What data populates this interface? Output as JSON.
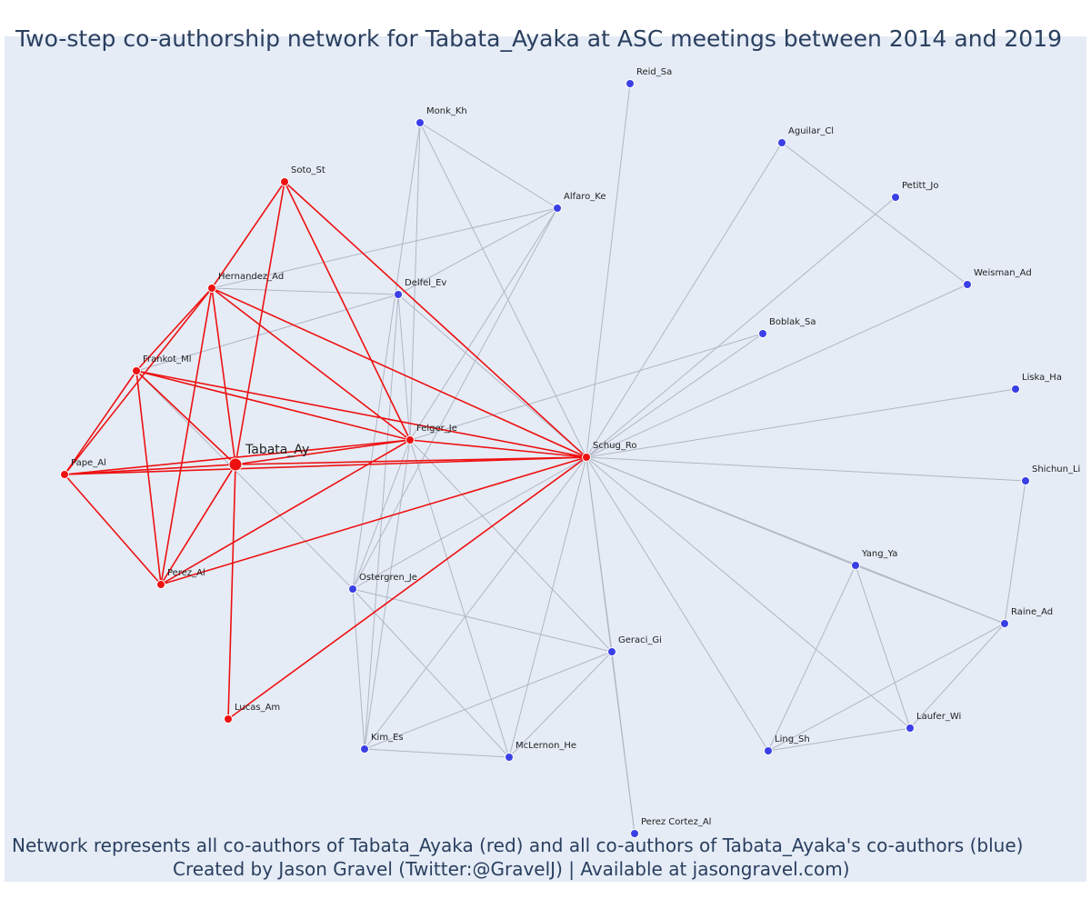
{
  "title": "Two-step co-authorship network for Tabata_Ayaka at ASC meetings between 2014 and 2019",
  "footer": {
    "line1": "Network represents all co-authors of Tabata_Ayaka (red) and all co-authors of Tabata_Ayaka's co-authors (blue)",
    "line2": "Created by Jason Gravel (Twitter:@GravelJ) | Available at jasongravel.com)"
  },
  "colors": {
    "background": "#e5ecf6",
    "red": "#ee1111",
    "blue": "#3a3fe6",
    "gray_edge": "#b2b6c4",
    "text": "#2a3f5f"
  },
  "nodes": [
    {
      "id": "tabata",
      "label": "Tabata_Ay",
      "group": "focal"
    },
    {
      "id": "soto",
      "label": "Soto_St",
      "group": "red"
    },
    {
      "id": "hernandez",
      "label": "Hernandez_Ad",
      "group": "red"
    },
    {
      "id": "frankot",
      "label": "Frankot_Ml",
      "group": "red"
    },
    {
      "id": "pape",
      "label": "Pape_Al",
      "group": "red"
    },
    {
      "id": "perez_al",
      "label": "Perez_Al",
      "group": "red"
    },
    {
      "id": "lucas",
      "label": "Lucas_Am",
      "group": "red"
    },
    {
      "id": "felger",
      "label": "Felger_Je",
      "group": "red"
    },
    {
      "id": "schug",
      "label": "Schug_Ro",
      "group": "red"
    },
    {
      "id": "reid",
      "label": "Reid_Sa",
      "group": "blue"
    },
    {
      "id": "monk",
      "label": "Monk_Kh",
      "group": "blue"
    },
    {
      "id": "aguilar",
      "label": "Aguilar_Cl",
      "group": "blue"
    },
    {
      "id": "alfaro",
      "label": "Alfaro_Ke",
      "group": "blue"
    },
    {
      "id": "petitt",
      "label": "Petitt_Jo",
      "group": "blue"
    },
    {
      "id": "delfel",
      "label": "Delfel_Ev",
      "group": "blue"
    },
    {
      "id": "weisman",
      "label": "Weisman_Ad",
      "group": "blue"
    },
    {
      "id": "boblak",
      "label": "Boblak_Sa",
      "group": "blue"
    },
    {
      "id": "liska",
      "label": "Liska_Ha",
      "group": "blue"
    },
    {
      "id": "shichun",
      "label": "Shichun_Li",
      "group": "blue"
    },
    {
      "id": "yang",
      "label": "Yang_Ya",
      "group": "blue"
    },
    {
      "id": "ostergren",
      "label": "Ostergren_Je",
      "group": "blue"
    },
    {
      "id": "raine",
      "label": "Raine_Ad",
      "group": "blue"
    },
    {
      "id": "geraci",
      "label": "Geraci_Gi",
      "group": "blue"
    },
    {
      "id": "laufer",
      "label": "Laufer_Wi",
      "group": "blue"
    },
    {
      "id": "ling",
      "label": "Ling_Sh",
      "group": "blue"
    },
    {
      "id": "kim",
      "label": "Kim_Es",
      "group": "blue"
    },
    {
      "id": "mclernon",
      "label": "McLernon_He",
      "group": "blue"
    },
    {
      "id": "perez_cortez",
      "label": "Perez Cortez_Al",
      "group": "blue"
    }
  ],
  "red_edges": [
    [
      "tabata",
      "soto"
    ],
    [
      "tabata",
      "hernandez"
    ],
    [
      "tabata",
      "frankot"
    ],
    [
      "tabata",
      "pape"
    ],
    [
      "tabata",
      "perez_al"
    ],
    [
      "tabata",
      "lucas"
    ],
    [
      "tabata",
      "felger"
    ],
    [
      "tabata",
      "schug"
    ],
    [
      "soto",
      "hernandez"
    ],
    [
      "soto",
      "felger"
    ],
    [
      "soto",
      "schug"
    ],
    [
      "hernandez",
      "frankot"
    ],
    [
      "hernandez",
      "pape"
    ],
    [
      "hernandez",
      "perez_al"
    ],
    [
      "hernandez",
      "felger"
    ],
    [
      "hernandez",
      "schug"
    ],
    [
      "frankot",
      "pape"
    ],
    [
      "frankot",
      "perez_al"
    ],
    [
      "frankot",
      "felger"
    ],
    [
      "frankot",
      "schug"
    ],
    [
      "pape",
      "perez_al"
    ],
    [
      "pape",
      "felger"
    ],
    [
      "pape",
      "schug"
    ],
    [
      "perez_al",
      "felger"
    ],
    [
      "perez_al",
      "schug"
    ],
    [
      "lucas",
      "schug"
    ],
    [
      "felger",
      "schug"
    ]
  ],
  "gray_edges": [
    [
      "reid",
      "schug"
    ],
    [
      "monk",
      "alfaro"
    ],
    [
      "monk",
      "felger"
    ],
    [
      "monk",
      "schug"
    ],
    [
      "monk",
      "ostergren"
    ],
    [
      "aguilar",
      "schug"
    ],
    [
      "aguilar",
      "weisman"
    ],
    [
      "alfaro",
      "hernandez"
    ],
    [
      "alfaro",
      "ostergren"
    ],
    [
      "alfaro",
      "felger"
    ],
    [
      "alfaro",
      "delfel"
    ],
    [
      "petitt",
      "schug"
    ],
    [
      "delfel",
      "hernandez"
    ],
    [
      "delfel",
      "frankot"
    ],
    [
      "delfel",
      "schug"
    ],
    [
      "delfel",
      "kim"
    ],
    [
      "delfel",
      "felger"
    ],
    [
      "weisman",
      "schug"
    ],
    [
      "boblak",
      "schug"
    ],
    [
      "boblak",
      "felger"
    ],
    [
      "liska",
      "schug"
    ],
    [
      "shichun",
      "schug"
    ],
    [
      "shichun",
      "raine"
    ],
    [
      "yang",
      "schug"
    ],
    [
      "yang",
      "raine"
    ],
    [
      "yang",
      "laufer"
    ],
    [
      "yang",
      "ling"
    ],
    [
      "raine",
      "laufer"
    ],
    [
      "raine",
      "ling"
    ],
    [
      "raine",
      "schug"
    ],
    [
      "laufer",
      "schug"
    ],
    [
      "laufer",
      "ling"
    ],
    [
      "ling",
      "schug"
    ],
    [
      "geraci",
      "schug"
    ],
    [
      "geraci",
      "ostergren"
    ],
    [
      "geraci",
      "kim"
    ],
    [
      "geraci",
      "mclernon"
    ],
    [
      "geraci",
      "perez_cortez"
    ],
    [
      "geraci",
      "felger"
    ],
    [
      "ostergren",
      "frankot"
    ],
    [
      "ostergren",
      "schug"
    ],
    [
      "ostergren",
      "mclernon"
    ],
    [
      "ostergren",
      "kim"
    ],
    [
      "ostergren",
      "felger"
    ],
    [
      "kim",
      "mclernon"
    ],
    [
      "kim",
      "schug"
    ],
    [
      "kim",
      "felger"
    ],
    [
      "mclernon",
      "schug"
    ],
    [
      "mclernon",
      "felger"
    ],
    [
      "perez_cortez",
      "schug"
    ]
  ]
}
